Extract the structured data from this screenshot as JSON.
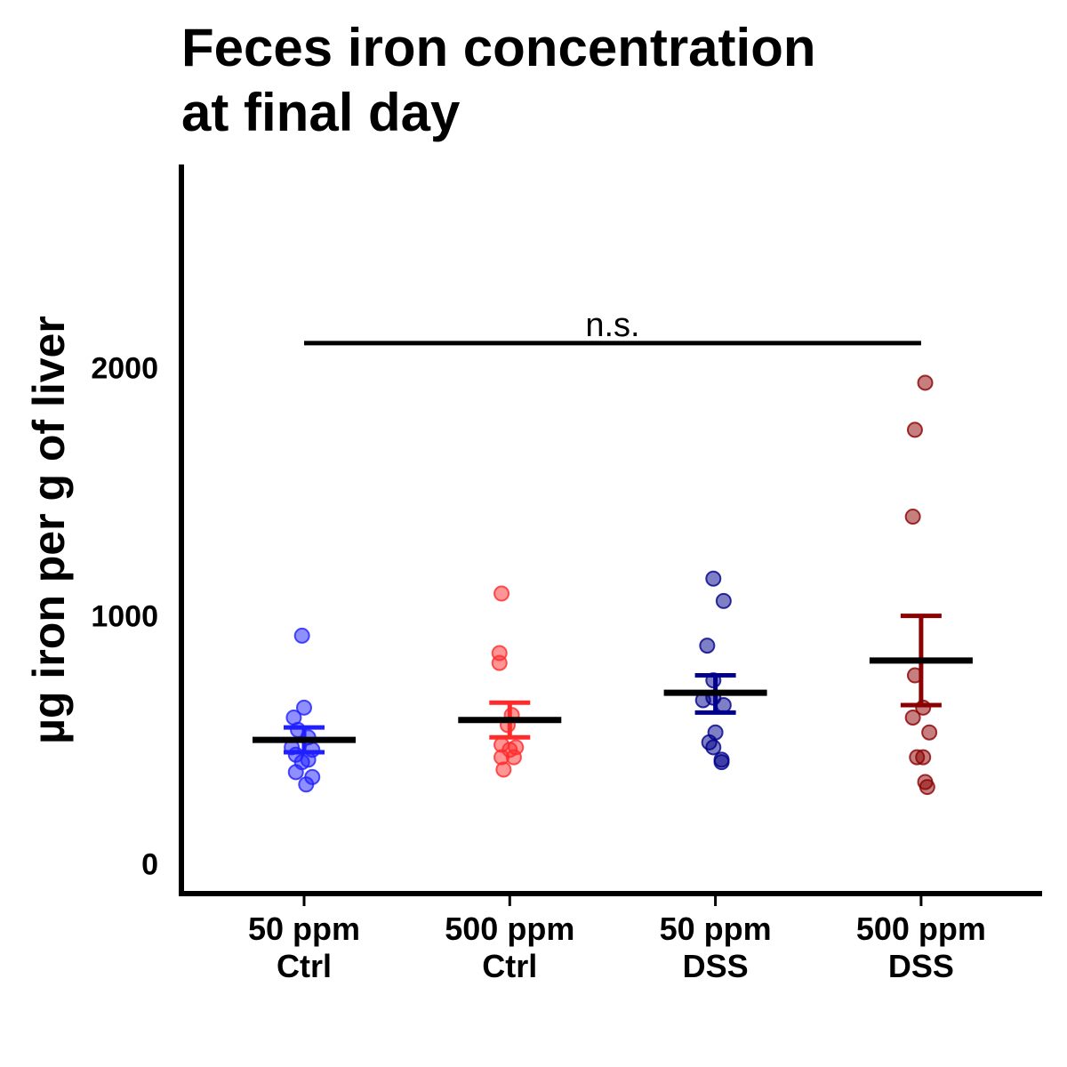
{
  "chart_data": {
    "type": "scatter",
    "title_lines": [
      "Feces iron concentration",
      "at final day"
    ],
    "ylabel": "µg iron per g of liver",
    "xlabel": "",
    "ylim": [
      -120,
      2820
    ],
    "yticks": [
      0,
      1000,
      2000
    ],
    "ytick_labels": [
      "0",
      "1000",
      "2000"
    ],
    "grid": false,
    "legend": "none",
    "groups": [
      {
        "label_lines": [
          "50 ppm",
          "Ctrl"
        ],
        "color": "#1f1fff",
        "mean": 500,
        "error": [
          450,
          550
        ],
        "points": [
          {
            "jitter": -0.01,
            "y": 920
          },
          {
            "jitter": 0.0,
            "y": 630
          },
          {
            "jitter": -0.05,
            "y": 590
          },
          {
            "jitter": -0.03,
            "y": 540
          },
          {
            "jitter": 0.02,
            "y": 510
          },
          {
            "jitter": -0.06,
            "y": 470
          },
          {
            "jitter": 0.04,
            "y": 460
          },
          {
            "jitter": -0.04,
            "y": 440
          },
          {
            "jitter": 0.02,
            "y": 420
          },
          {
            "jitter": -0.01,
            "y": 410
          },
          {
            "jitter": -0.04,
            "y": 370
          },
          {
            "jitter": 0.04,
            "y": 350
          },
          {
            "jitter": 0.01,
            "y": 320
          }
        ]
      },
      {
        "label_lines": [
          "500 ppm",
          "Ctrl"
        ],
        "color": "#ff2b2b",
        "mean": 580,
        "error": [
          510,
          650
        ],
        "points": [
          {
            "jitter": -0.04,
            "y": 1090
          },
          {
            "jitter": -0.05,
            "y": 850
          },
          {
            "jitter": -0.05,
            "y": 810
          },
          {
            "jitter": 0.01,
            "y": 600
          },
          {
            "jitter": -0.01,
            "y": 560
          },
          {
            "jitter": -0.04,
            "y": 480
          },
          {
            "jitter": 0.03,
            "y": 470
          },
          {
            "jitter": 0.0,
            "y": 460
          },
          {
            "jitter": -0.04,
            "y": 430
          },
          {
            "jitter": 0.02,
            "y": 430
          },
          {
            "jitter": -0.03,
            "y": 380
          }
        ]
      },
      {
        "label_lines": [
          "50 ppm",
          "DSS"
        ],
        "color": "#00008b",
        "mean": 690,
        "error": [
          610,
          760
        ],
        "points": [
          {
            "jitter": -0.01,
            "y": 1150
          },
          {
            "jitter": 0.04,
            "y": 1060
          },
          {
            "jitter": -0.04,
            "y": 880
          },
          {
            "jitter": -0.01,
            "y": 740
          },
          {
            "jitter": -0.01,
            "y": 670
          },
          {
            "jitter": -0.06,
            "y": 660
          },
          {
            "jitter": 0.04,
            "y": 640
          },
          {
            "jitter": 0.0,
            "y": 530
          },
          {
            "jitter": -0.03,
            "y": 490
          },
          {
            "jitter": -0.01,
            "y": 470
          },
          {
            "jitter": 0.03,
            "y": 420
          },
          {
            "jitter": 0.03,
            "y": 410
          }
        ]
      },
      {
        "label_lines": [
          "500 ppm",
          "DSS"
        ],
        "color": "#8b0000",
        "mean": 820,
        "error": [
          640,
          1000
        ],
        "points": [
          {
            "jitter": 0.02,
            "y": 1940
          },
          {
            "jitter": -0.03,
            "y": 1750
          },
          {
            "jitter": -0.04,
            "y": 1400
          },
          {
            "jitter": -0.03,
            "y": 760
          },
          {
            "jitter": 0.01,
            "y": 630
          },
          {
            "jitter": -0.04,
            "y": 590
          },
          {
            "jitter": 0.04,
            "y": 530
          },
          {
            "jitter": -0.02,
            "y": 430
          },
          {
            "jitter": 0.01,
            "y": 430
          },
          {
            "jitter": 0.02,
            "y": 330
          },
          {
            "jitter": 0.03,
            "y": 310
          }
        ]
      }
    ],
    "annotations": [
      {
        "text": "n.s.",
        "from_group": 0,
        "to_group": 3,
        "y": 2100
      }
    ]
  }
}
